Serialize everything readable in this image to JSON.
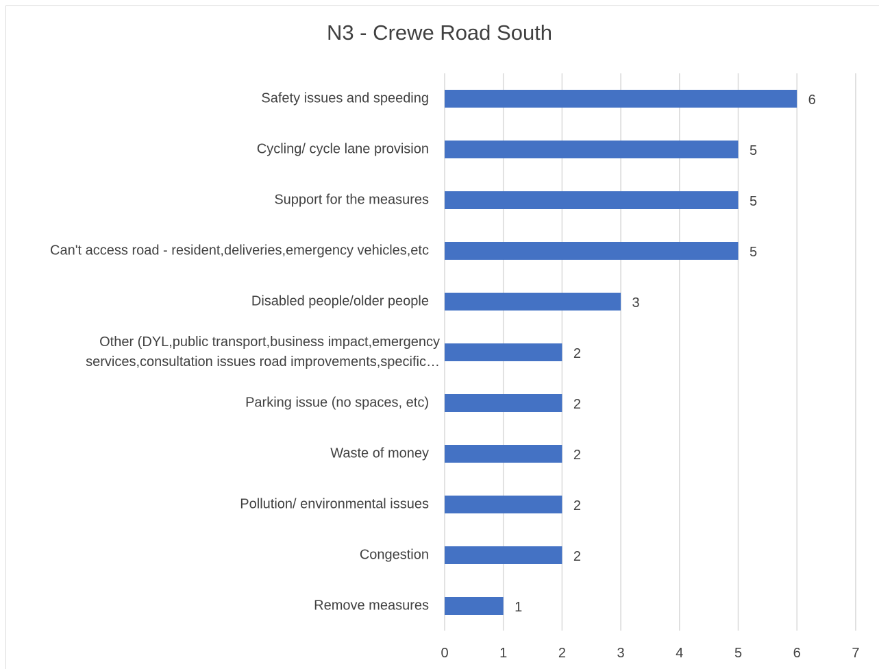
{
  "chart_data": {
    "type": "bar",
    "orientation": "horizontal",
    "title": "N3 - Crewe Road South",
    "categories": [
      "Safety issues and speeding",
      "Cycling/ cycle lane provision",
      "Support for the measures",
      "Can't access road - resident,deliveries,emergency vehicles,etc",
      "Disabled people/older people",
      "Other (DYL,public transport,business impact,emergency services,consultation issues road improvements,specific…",
      "Parking issue (no spaces, etc)",
      "Waste of money",
      "Pollution/ environmental issues",
      "Congestion",
      "Remove measures"
    ],
    "category_lines": [
      [
        "Safety issues and speeding"
      ],
      [
        "Cycling/ cycle lane provision"
      ],
      [
        "Support for the measures"
      ],
      [
        "Can't access road - resident,deliveries,emergency vehicles,etc"
      ],
      [
        "Disabled people/older people"
      ],
      [
        "Other (DYL,public transport,business impact,emergency",
        "services,consultation issues road improvements,specific…"
      ],
      [
        "Parking issue (no spaces, etc)"
      ],
      [
        "Waste of money"
      ],
      [
        "Pollution/ environmental issues"
      ],
      [
        "Congestion"
      ],
      [
        "Remove measures"
      ]
    ],
    "values": [
      6,
      5,
      5,
      5,
      3,
      2,
      2,
      2,
      2,
      2,
      1
    ],
    "xlim": [
      0,
      7
    ],
    "xticks": [
      "0",
      "1",
      "2",
      "3",
      "4",
      "5",
      "6",
      "7"
    ],
    "grid": "vertical",
    "data_labels": true,
    "legend": "none",
    "bar_color": "#4472c4",
    "grid_color": "#d9d9d9",
    "text_color": "#404040"
  }
}
